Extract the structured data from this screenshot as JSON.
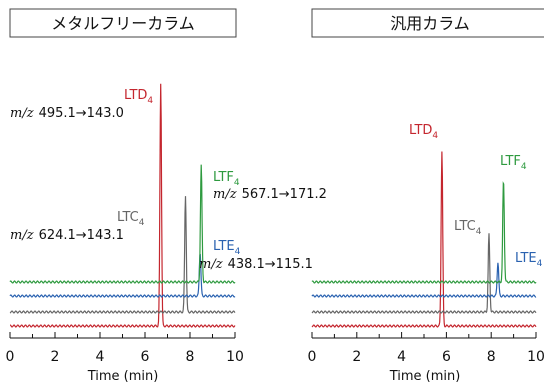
{
  "panels": [
    {
      "title": "メタルフリーカラム",
      "labels": [
        {
          "main": "LTD",
          "sub": "4",
          "color": "#c4262e"
        },
        {
          "main": "LTF",
          "sub": "4",
          "color": "#2e9a3f"
        },
        {
          "main": "LTC",
          "sub": "4",
          "color": "#666666"
        },
        {
          "main": "LTE",
          "sub": "4",
          "color": "#2a62b0"
        }
      ],
      "annotations": [
        {
          "prefix": "m/z",
          "text": "495.1→143.0"
        },
        {
          "prefix": "m/z",
          "text": "567.1→171.2"
        },
        {
          "prefix": "m/z",
          "text": "624.1→143.1"
        },
        {
          "prefix": "m/z",
          "text": "438.1→115.1"
        }
      ]
    },
    {
      "title": "汎用カラム",
      "labels": [
        {
          "main": "LTD",
          "sub": "4",
          "color": "#c4262e"
        },
        {
          "main": "LTF",
          "sub": "4",
          "color": "#2e9a3f"
        },
        {
          "main": "LTC",
          "sub": "4",
          "color": "#666666"
        },
        {
          "main": "LTE",
          "sub": "4",
          "color": "#2a62b0"
        }
      ],
      "annotations": []
    }
  ],
  "chart_data": [
    {
      "type": "line",
      "title": "メタルフリーカラム",
      "xlabel": "Time (min)",
      "ylabel": "",
      "xlim": [
        0,
        10
      ],
      "xticks": [
        0,
        2,
        4,
        6,
        8,
        10
      ],
      "grid": false,
      "series": [
        {
          "name": "LTD4",
          "color": "#c4262e",
          "peak_time": 6.7,
          "peak_height": 1.0
        },
        {
          "name": "LTC4",
          "color": "#666666",
          "peak_time": 7.8,
          "peak_height": 0.48
        },
        {
          "name": "LTE4",
          "color": "#2a62b0",
          "peak_time": 8.45,
          "peak_height": 0.18
        },
        {
          "name": "LTF4",
          "color": "#2e9a3f",
          "peak_time": 8.5,
          "peak_height": 0.48
        }
      ]
    },
    {
      "type": "line",
      "title": "汎用カラム",
      "xlabel": "Time (min)",
      "ylabel": "",
      "xlim": [
        0,
        10
      ],
      "xticks": [
        0,
        2,
        4,
        6,
        8,
        10
      ],
      "grid": false,
      "series": [
        {
          "name": "LTD4",
          "color": "#c4262e",
          "peak_time": 5.8,
          "peak_height": 0.72
        },
        {
          "name": "LTC4",
          "color": "#666666",
          "peak_time": 7.9,
          "peak_height": 0.32
        },
        {
          "name": "LTE4",
          "color": "#2a62b0",
          "peak_time": 8.3,
          "peak_height": 0.14
        },
        {
          "name": "LTF4",
          "color": "#2e9a3f",
          "peak_time": 8.55,
          "peak_height": 0.42
        }
      ]
    }
  ]
}
